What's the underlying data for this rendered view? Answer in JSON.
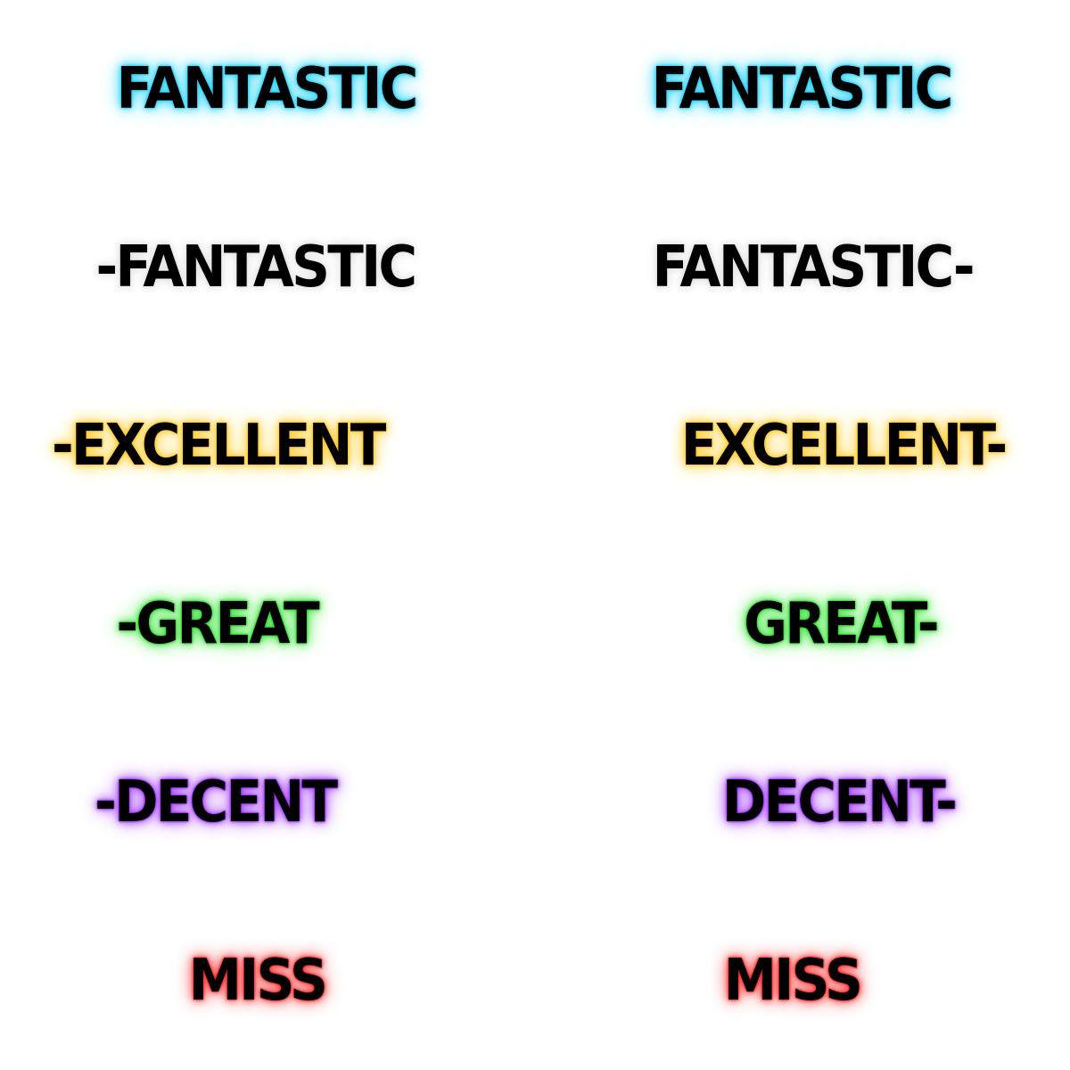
{
  "sheet": {
    "left_column": {
      "fantastic_cyan": "FANTASTIC",
      "fantastic_white": "-FANTASTIC",
      "excellent": "-EXCELLENT",
      "great": "-GREAT",
      "decent": "-DECENT",
      "miss": "MISS"
    },
    "right_column": {
      "fantastic_cyan": "FANTASTIC",
      "fantastic_white": "FANTASTIC-",
      "excellent": "EXCELLENT-",
      "great": "GREAT-",
      "decent": "DECENT-",
      "miss": "MISS"
    }
  },
  "colors": {
    "fantastic_glow": "#1ec8f0",
    "fantastic_white_glow": "#e6e6e6",
    "excellent_glow": "#ffc21a",
    "great_glow": "#25d225",
    "decent_glow": "#9a2cf0",
    "miss_glow": "#ee1e1e",
    "text": "#000000",
    "background": "#ffffff"
  }
}
